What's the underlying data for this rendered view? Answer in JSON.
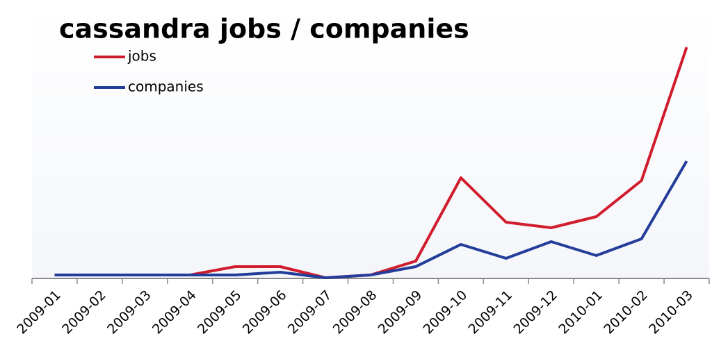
{
  "chart_data": {
    "type": "line",
    "title": "cassandra jobs / companies",
    "categories": [
      "2009-01",
      "2009-02",
      "2009-03",
      "2009-04",
      "2009-05",
      "2009-06",
      "2009-07",
      "2009-08",
      "2009-09",
      "2009-10",
      "2009-11",
      "2009-12",
      "2010-01",
      "2010-02",
      "2010-03"
    ],
    "series": [
      {
        "name": "jobs",
        "color": "#d01c2c",
        "values": [
          1,
          1,
          1,
          1,
          4,
          4,
          0,
          1,
          6,
          36,
          20,
          18,
          22,
          35,
          83
        ]
      },
      {
        "name": "companies",
        "color": "#233d9a",
        "values": [
          1,
          1,
          1,
          1,
          1,
          2,
          0,
          1,
          4,
          12,
          7,
          13,
          8,
          14,
          42
        ]
      }
    ],
    "ylim": [
      0,
      90
    ]
  }
}
